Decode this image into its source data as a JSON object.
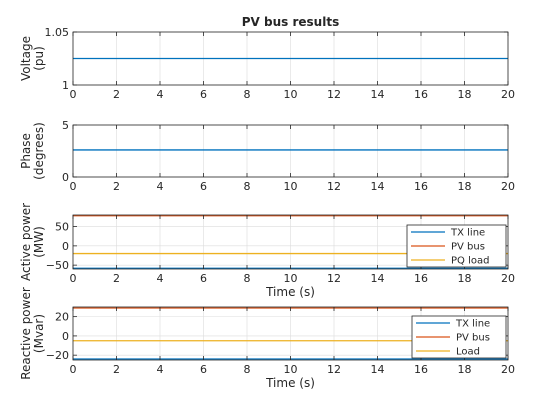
{
  "chart_data": [
    {
      "type": "line",
      "title": "PV bus results",
      "xlabel": "",
      "ylabel": [
        "Voltage",
        "(pu)"
      ],
      "xlim": [
        0,
        20
      ],
      "ylim": [
        1,
        1.05
      ],
      "xticks": [
        0,
        2,
        4,
        6,
        8,
        10,
        12,
        14,
        16,
        18,
        20
      ],
      "yticks": [
        1,
        1.05
      ],
      "grid": true,
      "series": [
        {
          "color": "#0072bd",
          "x": [
            0,
            20
          ],
          "y": [
            1.025,
            1.025
          ]
        }
      ]
    },
    {
      "type": "line",
      "title": "",
      "xlabel": "",
      "ylabel": [
        "Phase",
        "(degrees)"
      ],
      "xlim": [
        0,
        20
      ],
      "ylim": [
        0,
        5
      ],
      "xticks": [
        0,
        2,
        4,
        6,
        8,
        10,
        12,
        14,
        16,
        18,
        20
      ],
      "yticks": [
        0,
        5
      ],
      "grid": true,
      "series": [
        {
          "color": "#0072bd",
          "x": [
            0,
            20
          ],
          "y": [
            2.6,
            2.6
          ]
        }
      ]
    },
    {
      "type": "line",
      "title": "",
      "xlabel": "Time (s)",
      "ylabel": [
        "Active power",
        "(MW)"
      ],
      "xlim": [
        0,
        20
      ],
      "ylim": [
        -60,
        80
      ],
      "xticks": [
        0,
        2,
        4,
        6,
        8,
        10,
        12,
        14,
        16,
        18,
        20
      ],
      "yticks": [
        -50,
        0,
        50
      ],
      "grid": true,
      "legend": "right",
      "series": [
        {
          "name": "TX line",
          "color": "#0072bd",
          "x": [
            0,
            20
          ],
          "y": [
            -58,
            -58
          ]
        },
        {
          "name": "PV bus",
          "color": "#d95319",
          "x": [
            0,
            20
          ],
          "y": [
            78,
            78
          ]
        },
        {
          "name": "PQ load",
          "color": "#edb120",
          "x": [
            0,
            20
          ],
          "y": [
            -20,
            -20
          ]
        }
      ]
    },
    {
      "type": "line",
      "title": "",
      "xlabel": "Time (s)",
      "ylabel": [
        "Reactive power",
        "(Mvar)"
      ],
      "xlim": [
        0,
        20
      ],
      "ylim": [
        -25,
        30
      ],
      "xticks": [
        0,
        2,
        4,
        6,
        8,
        10,
        12,
        14,
        16,
        18,
        20
      ],
      "yticks": [
        -20,
        0,
        20
      ],
      "grid": true,
      "legend": "right",
      "series": [
        {
          "name": "TX line",
          "color": "#0072bd",
          "x": [
            0,
            20
          ],
          "y": [
            -24,
            -24
          ]
        },
        {
          "name": "PV bus",
          "color": "#d95319",
          "x": [
            0,
            20
          ],
          "y": [
            29,
            29
          ]
        },
        {
          "name": "Load",
          "color": "#edb120",
          "x": [
            0,
            20
          ],
          "y": [
            -5,
            -5
          ]
        }
      ]
    }
  ]
}
